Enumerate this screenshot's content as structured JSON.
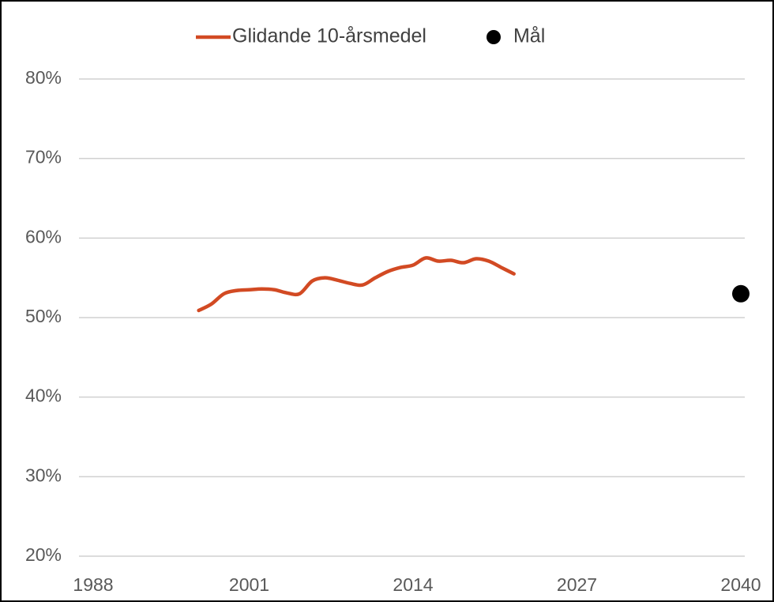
{
  "chart_data": {
    "type": "line",
    "series": [
      {
        "name": "Glidande 10-årsmedel",
        "color": "#d24a23",
        "type": "line",
        "x": [
          1997,
          1998,
          1999,
          2000,
          2001,
          2002,
          2003,
          2004,
          2005,
          2006,
          2007,
          2008,
          2009,
          2010,
          2011,
          2012,
          2013,
          2014,
          2015,
          2016,
          2017,
          2018,
          2019,
          2020,
          2021,
          2022
        ],
        "values": [
          50.9,
          51.7,
          53.0,
          53.4,
          53.5,
          53.6,
          53.5,
          53.1,
          53.0,
          54.6,
          55.0,
          54.7,
          54.3,
          54.1,
          55.0,
          55.8,
          56.3,
          56.6,
          57.5,
          57.1,
          57.2,
          56.9,
          57.4,
          57.1,
          56.3,
          55.5
        ]
      },
      {
        "name": "Mål",
        "color": "#000000",
        "type": "scatter",
        "x": [
          2040
        ],
        "values": [
          53
        ]
      }
    ],
    "xlim": [
      1988,
      2040
    ],
    "xticks": [
      1988,
      2001,
      2014,
      2027,
      2040
    ],
    "ylim": [
      20,
      80
    ],
    "yticks": [
      {
        "value": 20,
        "label": "20%"
      },
      {
        "value": 30,
        "label": "30%"
      },
      {
        "value": 40,
        "label": "40%"
      },
      {
        "value": 50,
        "label": "50%"
      },
      {
        "value": 60,
        "label": "60%"
      },
      {
        "value": 70,
        "label": "70%"
      },
      {
        "value": 80,
        "label": "80%"
      }
    ],
    "grid": true,
    "legend": "top"
  }
}
